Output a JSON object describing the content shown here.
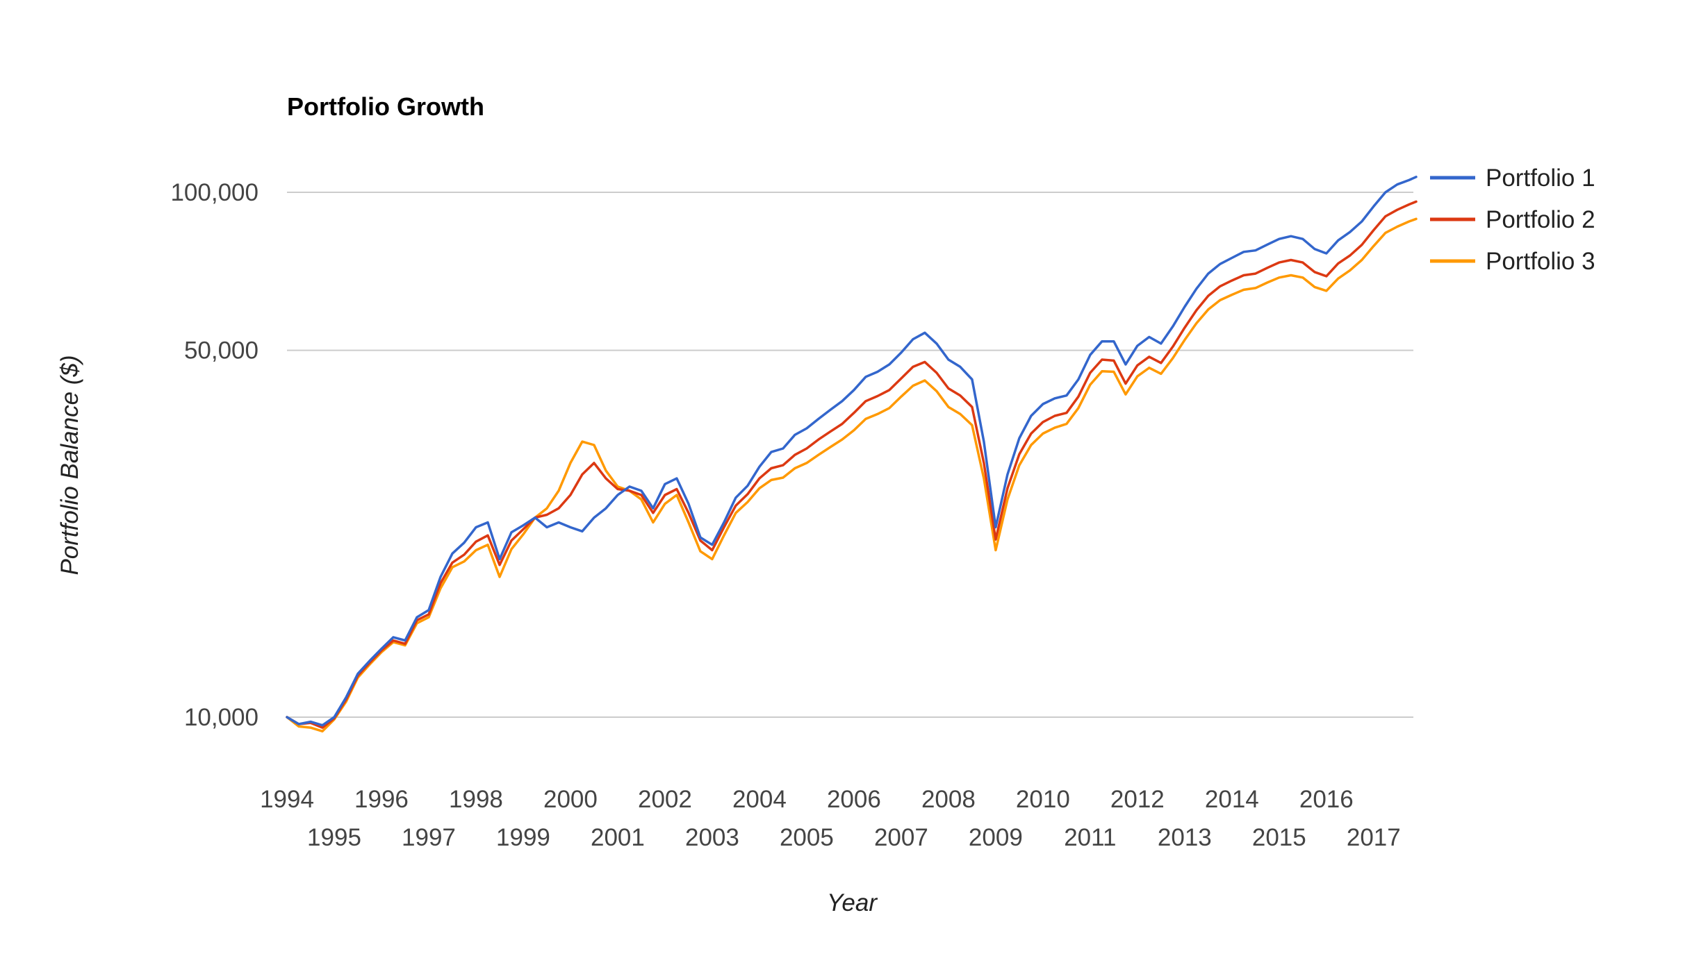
{
  "chart_data": {
    "type": "line",
    "title": "Portfolio Growth",
    "xlabel": "Year",
    "ylabel": "Portfolio Balance ($)",
    "y_scale": "log",
    "ylim": [
      8000,
      115000
    ],
    "xlim": [
      1994.0,
      2017.9
    ],
    "grid": true,
    "legend_position": "right",
    "y_ticks": [
      {
        "value": 10000,
        "label": "10,000"
      },
      {
        "value": 50000,
        "label": "50,000"
      },
      {
        "value": 100000,
        "label": "100,000"
      }
    ],
    "x_ticks": [
      {
        "value": 1994,
        "label": "1994"
      },
      {
        "value": 1995,
        "label": "1995"
      },
      {
        "value": 1996,
        "label": "1996"
      },
      {
        "value": 1997,
        "label": "1997"
      },
      {
        "value": 1998,
        "label": "1998"
      },
      {
        "value": 1999,
        "label": "1999"
      },
      {
        "value": 2000,
        "label": "2000"
      },
      {
        "value": 2001,
        "label": "2001"
      },
      {
        "value": 2002,
        "label": "2002"
      },
      {
        "value": 2003,
        "label": "2003"
      },
      {
        "value": 2004,
        "label": "2004"
      },
      {
        "value": 2005,
        "label": "2005"
      },
      {
        "value": 2006,
        "label": "2006"
      },
      {
        "value": 2007,
        "label": "2007"
      },
      {
        "value": 2008,
        "label": "2008"
      },
      {
        "value": 2009,
        "label": "2009"
      },
      {
        "value": 2010,
        "label": "2010"
      },
      {
        "value": 2011,
        "label": "2011"
      },
      {
        "value": 2012,
        "label": "2012"
      },
      {
        "value": 2013,
        "label": "2013"
      },
      {
        "value": 2014,
        "label": "2014"
      },
      {
        "value": 2015,
        "label": "2015"
      },
      {
        "value": 2016,
        "label": "2016"
      },
      {
        "value": 2017,
        "label": "2017"
      }
    ],
    "x": [
      1994.0,
      1994.25,
      1994.5,
      1994.75,
      1995.0,
      1995.25,
      1995.5,
      1995.75,
      1996.0,
      1996.25,
      1996.5,
      1996.75,
      1997.0,
      1997.25,
      1997.5,
      1997.75,
      1998.0,
      1998.25,
      1998.5,
      1998.75,
      1999.0,
      1999.25,
      1999.5,
      1999.75,
      2000.0,
      2000.25,
      2000.5,
      2000.75,
      2001.0,
      2001.25,
      2001.5,
      2001.75,
      2002.0,
      2002.25,
      2002.5,
      2002.75,
      2003.0,
      2003.25,
      2003.5,
      2003.75,
      2004.0,
      2004.25,
      2004.5,
      2004.75,
      2005.0,
      2005.25,
      2005.5,
      2005.75,
      2006.0,
      2006.25,
      2006.5,
      2006.75,
      2007.0,
      2007.25,
      2007.5,
      2007.75,
      2008.0,
      2008.25,
      2008.5,
      2008.75,
      2009.0,
      2009.25,
      2009.5,
      2009.75,
      2010.0,
      2010.25,
      2010.5,
      2010.75,
      2011.0,
      2011.25,
      2011.5,
      2011.75,
      2012.0,
      2012.25,
      2012.5,
      2012.75,
      2013.0,
      2013.25,
      2013.5,
      2013.75,
      2014.0,
      2014.25,
      2014.5,
      2014.75,
      2015.0,
      2015.25,
      2015.5,
      2015.75,
      2016.0,
      2016.25,
      2016.5,
      2016.75,
      2017.0,
      2017.25,
      2017.5,
      2017.75,
      2017.9
    ],
    "series": [
      {
        "name": "Portfolio 1",
        "color": "#3366cc",
        "values": [
          10000,
          9700,
          9800,
          9650,
          10000,
          10900,
          12100,
          12800,
          13500,
          14200,
          14000,
          15500,
          16000,
          18500,
          20500,
          21500,
          23000,
          23500,
          20000,
          22500,
          23200,
          24000,
          23000,
          23500,
          23000,
          22600,
          24000,
          25000,
          26500,
          27500,
          27000,
          25000,
          27800,
          28500,
          25500,
          22000,
          21300,
          23500,
          26200,
          27600,
          30000,
          32000,
          32500,
          34500,
          35500,
          37000,
          38500,
          40000,
          42000,
          44500,
          45500,
          47000,
          49500,
          52500,
          54000,
          51500,
          48000,
          46500,
          44000,
          33500,
          23000,
          29000,
          34000,
          37500,
          39500,
          40500,
          41000,
          44000,
          49000,
          52000,
          52000,
          47000,
          51000,
          53000,
          51500,
          55500,
          60500,
          65500,
          70000,
          73000,
          75000,
          77000,
          77500,
          79500,
          81500,
          82500,
          81500,
          78000,
          76500,
          81000,
          84000,
          88000,
          94000,
          100000,
          103500,
          105500,
          107000
        ]
      },
      {
        "name": "Portfolio 2",
        "color": "#dc3912",
        "values": [
          10000,
          9700,
          9750,
          9550,
          9950,
          10800,
          12000,
          12700,
          13400,
          14000,
          13800,
          15300,
          15700,
          18000,
          19700,
          20400,
          21600,
          22200,
          19500,
          21700,
          22800,
          24000,
          24300,
          25000,
          26500,
          29000,
          30500,
          28500,
          27200,
          27000,
          26500,
          24500,
          26500,
          27200,
          24500,
          21700,
          20800,
          23000,
          25300,
          26600,
          28500,
          29800,
          30200,
          31600,
          32500,
          33800,
          35000,
          36200,
          38000,
          40000,
          40900,
          42000,
          44200,
          46500,
          47500,
          45300,
          42300,
          41000,
          39000,
          30500,
          21800,
          27300,
          31700,
          34700,
          36500,
          37500,
          38000,
          40800,
          45300,
          48000,
          47800,
          43200,
          46800,
          48600,
          47300,
          50800,
          55200,
          59600,
          63500,
          66200,
          67900,
          69500,
          70000,
          71800,
          73500,
          74300,
          73500,
          70500,
          69200,
          73200,
          75800,
          79400,
          84700,
          90000,
          92600,
          94800,
          96000
        ]
      },
      {
        "name": "Portfolio 3",
        "color": "#ff9900",
        "values": [
          10000,
          9600,
          9550,
          9400,
          9900,
          10700,
          11900,
          12600,
          13300,
          13900,
          13700,
          15100,
          15500,
          17600,
          19300,
          19800,
          20800,
          21300,
          18500,
          20900,
          22300,
          24000,
          25000,
          27000,
          30500,
          33500,
          33000,
          29500,
          27500,
          27000,
          26000,
          23500,
          25500,
          26500,
          23500,
          20700,
          20000,
          22200,
          24500,
          25700,
          27300,
          28300,
          28600,
          29800,
          30500,
          31600,
          32700,
          33800,
          35200,
          37000,
          37800,
          38800,
          40800,
          42800,
          43800,
          41800,
          39000,
          37800,
          36000,
          28500,
          20800,
          26000,
          30200,
          33000,
          34700,
          35600,
          36200,
          38800,
          43000,
          45600,
          45500,
          41200,
          44600,
          46300,
          45100,
          48300,
          52300,
          56300,
          59800,
          62300,
          63800,
          65200,
          65700,
          67300,
          68800,
          69500,
          68800,
          66000,
          64900,
          68500,
          71000,
          74300,
          79000,
          83700,
          86000,
          88000,
          89000
        ]
      }
    ]
  }
}
